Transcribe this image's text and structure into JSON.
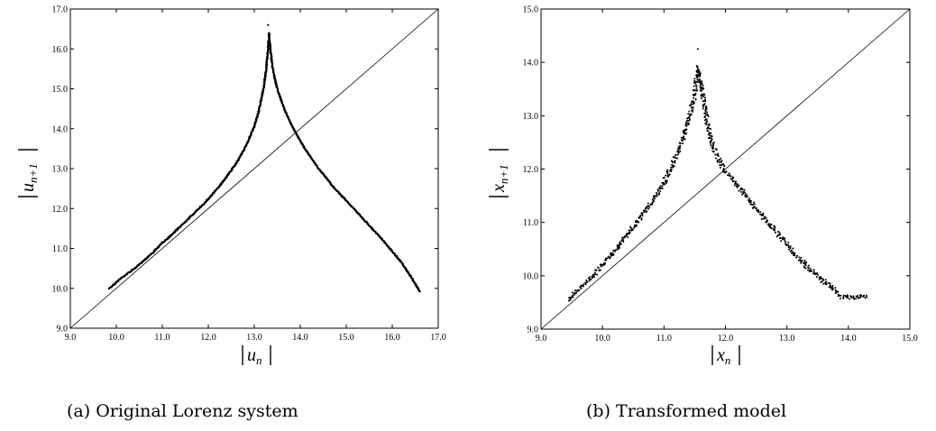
{
  "chart_data": [
    {
      "type": "scatter",
      "caption": "(a) Original Lorenz system",
      "xlabel": {
        "symbol": "u",
        "sub": "n"
      },
      "ylabel": {
        "symbol": "u",
        "sub": "n+1"
      },
      "xlim": [
        9.0,
        17.0
      ],
      "ylim": [
        9.0,
        17.0
      ],
      "xticks": [
        "9.0",
        "10.0",
        "11.0",
        "12.0",
        "13.0",
        "14.0",
        "15.0",
        "16.0",
        "17.0"
      ],
      "yticks": [
        "9.0",
        "10.0",
        "11.0",
        "12.0",
        "13.0",
        "14.0",
        "15.0",
        "16.0",
        "17.0"
      ],
      "reference_line": "y = x",
      "cusp": {
        "x": 13.3,
        "y": 16.6
      },
      "series": [
        {
          "values": [
            [
              9.85,
              10.0
            ],
            [
              10.1,
              10.25
            ],
            [
              10.4,
              10.5
            ],
            [
              10.6,
              10.7
            ],
            [
              10.8,
              10.9
            ],
            [
              11.0,
              11.14
            ],
            [
              11.2,
              11.34
            ],
            [
              11.4,
              11.56
            ],
            [
              11.6,
              11.78
            ],
            [
              11.8,
              12.0
            ],
            [
              12.0,
              12.24
            ],
            [
              12.2,
              12.5
            ],
            [
              12.4,
              12.8
            ],
            [
              12.6,
              13.12
            ],
            [
              12.8,
              13.52
            ],
            [
              13.0,
              14.05
            ],
            [
              13.1,
              14.45
            ],
            [
              13.2,
              15.0
            ],
            [
              13.26,
              15.5
            ],
            [
              13.3,
              16.0
            ],
            [
              13.32,
              16.4
            ],
            [
              13.35,
              16.0
            ],
            [
              13.4,
              15.5
            ],
            [
              13.5,
              15.0
            ],
            [
              13.65,
              14.5
            ],
            [
              13.85,
              14.0
            ],
            [
              14.1,
              13.5
            ],
            [
              14.4,
              13.0
            ],
            [
              14.75,
              12.5
            ],
            [
              15.0,
              12.2
            ],
            [
              15.2,
              11.95
            ],
            [
              15.4,
              11.7
            ],
            [
              15.6,
              11.45
            ],
            [
              15.8,
              11.2
            ],
            [
              16.0,
              10.92
            ],
            [
              16.2,
              10.65
            ],
            [
              16.4,
              10.3
            ],
            [
              16.6,
              9.92
            ]
          ]
        }
      ]
    },
    {
      "type": "scatter",
      "caption": "(b) Transformed model",
      "xlabel": {
        "symbol": "x",
        "sub": "n"
      },
      "ylabel": {
        "symbol": "x",
        "sub": "n+1"
      },
      "xlim": [
        9.0,
        15.0
      ],
      "ylim": [
        9.0,
        15.0
      ],
      "xticks": [
        "9.0",
        "10.0",
        "11.0",
        "12.0",
        "13.0",
        "14.0",
        "15.0"
      ],
      "yticks": [
        "9.0",
        "10.0",
        "11.0",
        "12.0",
        "13.0",
        "14.0",
        "15.0"
      ],
      "reference_line": "y = x",
      "cusp": {
        "x": 11.55,
        "y": 14.25
      },
      "series": [
        {
          "values": [
            [
              9.45,
              9.55
            ],
            [
              9.6,
              9.72
            ],
            [
              9.8,
              9.95
            ],
            [
              10.0,
              10.22
            ],
            [
              10.2,
              10.48
            ],
            [
              10.4,
              10.76
            ],
            [
              10.6,
              11.05
            ],
            [
              10.8,
              11.38
            ],
            [
              11.0,
              11.75
            ],
            [
              11.1,
              11.98
            ],
            [
              11.2,
              12.25
            ],
            [
              11.3,
              12.55
            ],
            [
              11.4,
              12.9
            ],
            [
              11.5,
              13.4
            ],
            [
              11.55,
              13.9
            ],
            [
              11.6,
              13.6
            ],
            [
              11.7,
              12.9
            ],
            [
              11.8,
              12.4
            ],
            [
              11.9,
              12.15
            ],
            [
              12.0,
              11.95
            ],
            [
              12.1,
              11.82
            ],
            [
              12.3,
              11.55
            ],
            [
              12.5,
              11.25
            ],
            [
              12.7,
              11.0
            ],
            [
              12.9,
              10.72
            ],
            [
              13.1,
              10.45
            ],
            [
              13.3,
              10.2
            ],
            [
              13.5,
              10.0
            ],
            [
              13.7,
              9.8
            ],
            [
              13.9,
              9.6
            ],
            [
              14.3,
              9.6
            ]
          ]
        }
      ]
    }
  ]
}
